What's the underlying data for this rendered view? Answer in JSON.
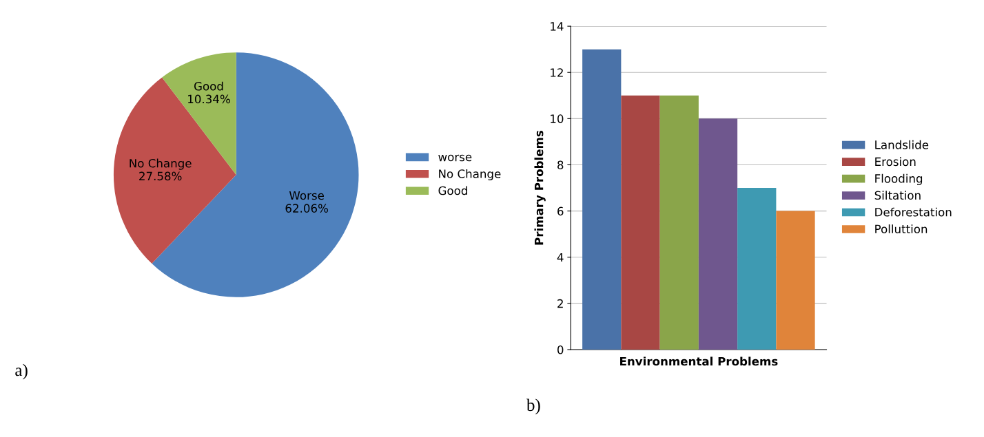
{
  "chart_data": [
    {
      "type": "pie",
      "categories": [
        "worse",
        "No Change",
        "Good"
      ],
      "values": [
        62.06,
        27.58,
        10.34
      ],
      "colors": [
        "#4f81bd",
        "#c0504d",
        "#9bbb59"
      ],
      "value_labels": [
        "Worse\n62.06%",
        "No Change\n27.58%",
        "Good\n10.34%"
      ],
      "legend": "right",
      "annotations": [
        "a)"
      ]
    },
    {
      "type": "bar",
      "categories": [
        null
      ],
      "xlabel": "Environmental Problems",
      "ylabel": "Primary Problems",
      "series": [
        {
          "name": "Landslide",
          "color": "#4a72a8",
          "values": [
            13
          ]
        },
        {
          "name": "Erosion",
          "color": "#a84744",
          "values": [
            11
          ]
        },
        {
          "name": "Flooding",
          "color": "#8aa54a",
          "values": [
            11
          ]
        },
        {
          "name": "Siltation",
          "color": "#6f578e",
          "values": [
            10
          ]
        },
        {
          "name": "Deforestation",
          "color": "#3e9ab2",
          "values": [
            7
          ]
        },
        {
          "name": "Polluttion",
          "color": "#e0843a",
          "values": [
            6
          ]
        }
      ],
      "ylim": [
        0,
        14
      ],
      "yticks": [
        0,
        2,
        4,
        6,
        8,
        10,
        12,
        14
      ],
      "grid": "y",
      "legend": "right",
      "annotations": [
        "b)"
      ]
    }
  ]
}
